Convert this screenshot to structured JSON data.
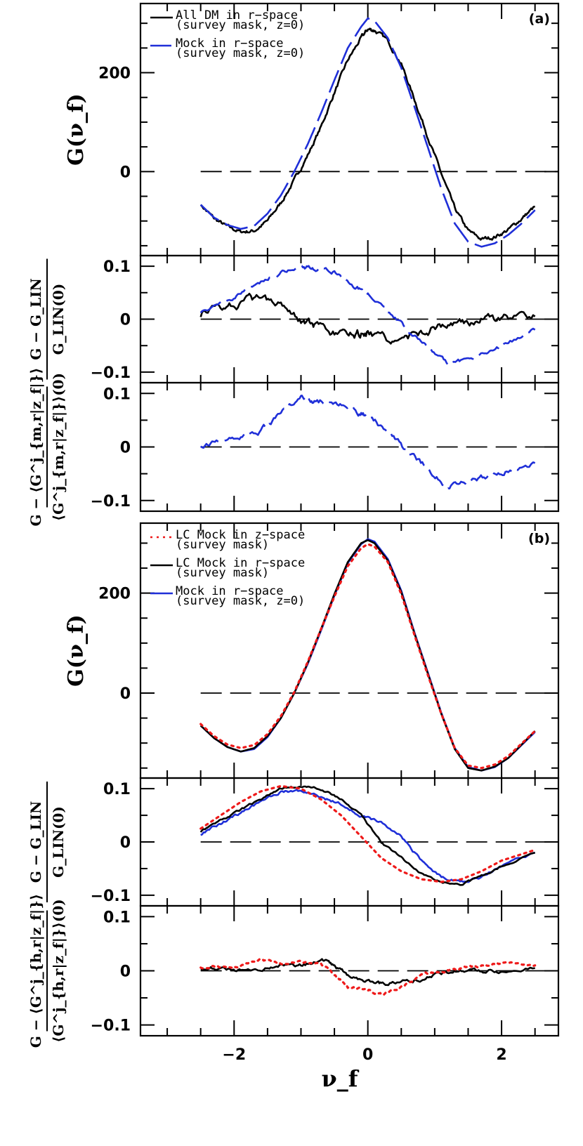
{
  "colors": {
    "black": "#000000",
    "blue": "#1f2fd8",
    "red": "#ee1a1a"
  },
  "chart_data": {
    "type": "line",
    "x_label": "ν_f",
    "x_ticks": [
      "−2",
      "0",
      "2"
    ],
    "panels": [
      {
        "id": "a-main",
        "panel_tag": "(a)",
        "ylabel": "G(ν_f)",
        "ylim": [
          -170,
          340
        ],
        "y_ticks": [
          {
            "v": 0,
            "t": "0"
          },
          {
            "v": 200,
            "t": "200"
          }
        ],
        "legend": [
          {
            "line1": "All DM in r−space",
            "line2": "(survey mask, z=0)",
            "color": "#000000",
            "dash": "solid"
          },
          {
            "line1": "Mock in r−space",
            "line2": "(survey mask, z=0)",
            "color": "#1f2fd8",
            "dash": "long"
          }
        ],
        "series": [
          {
            "color": "#000000",
            "dash": "solid",
            "noise": 0.006,
            "x": [
              -2.5,
              -2.3,
              -2.1,
              -1.9,
              -1.7,
              -1.5,
              -1.3,
              -1.1,
              -0.9,
              -0.7,
              -0.5,
              -0.3,
              -0.1,
              0,
              0.1,
              0.3,
              0.5,
              0.7,
              0.9,
              1.1,
              1.3,
              1.5,
              1.7,
              1.9,
              2.1,
              2.3,
              2.5
            ],
            "y": [
              -67,
              -95,
              -112,
              -122,
              -120,
              -100,
              -63,
              -18,
              33,
              90,
              160,
              225,
              270,
              288,
              286,
              265,
              218,
              145,
              70,
              -5,
              -75,
              -120,
              -137,
              -132,
              -118,
              -95,
              -71
            ]
          },
          {
            "color": "#1f2fd8",
            "dash": "long",
            "noise": 0,
            "x": [
              -2.5,
              -2.3,
              -2.1,
              -1.9,
              -1.7,
              -1.5,
              -1.3,
              -1.1,
              -0.9,
              -0.7,
              -0.5,
              -0.3,
              -0.1,
              0,
              0.1,
              0.3,
              0.5,
              0.7,
              0.9,
              1.1,
              1.3,
              1.5,
              1.7,
              1.9,
              2.1,
              2.3,
              2.5
            ],
            "y": [
              -67,
              -93,
              -108,
              -116,
              -110,
              -85,
              -48,
              0,
              55,
              118,
              185,
              250,
              293,
              310,
              305,
              270,
              210,
              130,
              48,
              -35,
              -105,
              -142,
              -152,
              -145,
              -128,
              -105,
              -78
            ]
          }
        ],
        "zero_line": "dashed"
      },
      {
        "id": "a-ratio1",
        "ylabel_num": "G − G_LIN",
        "ylabel_den": "G_LIN(0)",
        "ylim": [
          -0.12,
          0.12
        ],
        "y_ticks": [
          {
            "v": -0.1,
            "t": "−0.1"
          },
          {
            "v": 0,
            "t": "0"
          },
          {
            "v": 0.1,
            "t": "0.1"
          }
        ],
        "series": [
          {
            "color": "#000000",
            "dash": "solid",
            "noise": 0.012,
            "x": [
              -2.5,
              -2.2,
              -1.9,
              -1.6,
              -1.3,
              -1.0,
              -0.8,
              -0.5,
              -0.2,
              0,
              0.3,
              0.6,
              0.9,
              1.2,
              1.5,
              1.8,
              2.1,
              2.5
            ],
            "y": [
              0.01,
              0.025,
              0.03,
              0.04,
              0.035,
              0.0,
              -0.015,
              -0.03,
              -0.03,
              -0.025,
              -0.04,
              -0.035,
              -0.02,
              -0.01,
              -0.005,
              0.0,
              0.002,
              0.005
            ]
          },
          {
            "color": "#1f2fd8",
            "dash": "long",
            "noise": 0.006,
            "x": [
              -2.5,
              -2.2,
              -1.9,
              -1.6,
              -1.3,
              -1.0,
              -0.8,
              -0.5,
              -0.2,
              0,
              0.3,
              0.6,
              0.9,
              1.2,
              1.5,
              1.8,
              2.1,
              2.5
            ],
            "y": [
              0.015,
              0.03,
              0.05,
              0.07,
              0.09,
              0.1,
              0.095,
              0.09,
              0.06,
              0.05,
              0.015,
              -0.02,
              -0.055,
              -0.085,
              -0.075,
              -0.06,
              -0.045,
              -0.02
            ]
          }
        ],
        "zero_line": "dashed"
      },
      {
        "id": "a-ratio2",
        "ylabel_num": "G − ⟨G^j_{m,r|z_f|}⟩",
        "ylabel_den": "⟨G^j_{m,r|z_f|}⟩(0)",
        "ylim": [
          -0.12,
          0.12
        ],
        "y_ticks": [
          {
            "v": -0.1,
            "t": "−0.1"
          },
          {
            "v": 0,
            "t": "0"
          },
          {
            "v": 0.1,
            "t": "0.1"
          }
        ],
        "series": [
          {
            "color": "#1f2fd8",
            "dash": "long",
            "noise": 0.008,
            "x": [
              -2.5,
              -2.2,
              -1.9,
              -1.6,
              -1.3,
              -1.0,
              -0.8,
              -0.5,
              -0.2,
              0,
              0.3,
              0.6,
              0.9,
              1.2,
              1.5,
              1.8,
              2.1,
              2.5
            ],
            "y": [
              0.005,
              0.01,
              0.02,
              0.03,
              0.06,
              0.1,
              0.085,
              0.085,
              0.07,
              0.055,
              0.03,
              -0.01,
              -0.04,
              -0.075,
              -0.065,
              -0.055,
              -0.045,
              -0.03
            ]
          }
        ],
        "zero_line": "dashed"
      },
      {
        "id": "b-main",
        "panel_tag": "(b)",
        "ylabel": "G(ν_f)",
        "ylim": [
          -170,
          340
        ],
        "y_ticks": [
          {
            "v": 0,
            "t": "0"
          },
          {
            "v": 200,
            "t": "200"
          }
        ],
        "legend": [
          {
            "line1": "LC Mock in z−space",
            "line2": "(survey mask)",
            "color": "#ee1a1a",
            "dash": "dotted"
          },
          {
            "line1": "LC Mock in r−space",
            "line2": "(survey mask)",
            "color": "#000000",
            "dash": "solid"
          },
          {
            "line1": "Mock in r−space",
            "line2": "(survey mask, z=0)",
            "color": "#1f2fd8",
            "dash": "solid"
          }
        ],
        "series": [
          {
            "color": "#1f2fd8",
            "dash": "solid",
            "noise": 0,
            "x": [
              -2.5,
              -2.3,
              -2.1,
              -1.9,
              -1.7,
              -1.5,
              -1.3,
              -1.1,
              -0.9,
              -0.7,
              -0.5,
              -0.3,
              -0.1,
              0,
              0.1,
              0.3,
              0.5,
              0.7,
              0.9,
              1.1,
              1.3,
              1.5,
              1.7,
              1.9,
              2.1,
              2.5
            ],
            "y": [
              -65,
              -90,
              -108,
              -117,
              -112,
              -88,
              -50,
              0,
              58,
              125,
              195,
              260,
              298,
              308,
              303,
              268,
              205,
              120,
              40,
              -40,
              -110,
              -148,
              -155,
              -148,
              -130,
              -78
            ]
          },
          {
            "color": "#000000",
            "dash": "solid",
            "noise": 0,
            "x": [
              -2.5,
              -2.3,
              -2.1,
              -1.9,
              -1.7,
              -1.5,
              -1.3,
              -1.1,
              -0.9,
              -0.7,
              -0.5,
              -0.3,
              -0.1,
              0,
              0.1,
              0.3,
              0.5,
              0.7,
              0.9,
              1.1,
              1.3,
              1.5,
              1.7,
              1.9,
              2.1,
              2.5
            ],
            "y": [
              -65,
              -90,
              -108,
              -117,
              -110,
              -86,
              -50,
              0,
              60,
              128,
              198,
              262,
              300,
              306,
              300,
              265,
              202,
              118,
              38,
              -42,
              -112,
              -150,
              -155,
              -147,
              -130,
              -76
            ]
          },
          {
            "color": "#ee1a1a",
            "dash": "dotted",
            "noise": 0,
            "x": [
              -2.5,
              -2.3,
              -2.1,
              -1.9,
              -1.7,
              -1.5,
              -1.3,
              -1.1,
              -0.9,
              -0.7,
              -0.5,
              -0.3,
              -0.1,
              0,
              0.1,
              0.3,
              0.5,
              0.7,
              0.9,
              1.1,
              1.3,
              1.5,
              1.7,
              1.9,
              2.1,
              2.5
            ],
            "y": [
              -62,
              -86,
              -103,
              -110,
              -104,
              -82,
              -46,
              2,
              62,
              128,
              193,
              254,
              290,
              298,
              293,
              262,
              198,
              115,
              35,
              -42,
              -110,
              -145,
              -150,
              -143,
              -126,
              -76
            ]
          }
        ],
        "zero_line": "dashed"
      },
      {
        "id": "b-ratio1",
        "ylabel_num": "G − G_LIN",
        "ylabel_den": "G_LIN(0)",
        "ylim": [
          -0.12,
          0.12
        ],
        "y_ticks": [
          {
            "v": -0.1,
            "t": "−0.1"
          },
          {
            "v": 0,
            "t": "0"
          },
          {
            "v": 0.1,
            "t": "0.1"
          }
        ],
        "series": [
          {
            "color": "#1f2fd8",
            "dash": "solid",
            "noise": 0.004,
            "x": [
              -2.5,
              -2.2,
              -1.9,
              -1.6,
              -1.3,
              -1.0,
              -0.7,
              -0.4,
              -0.1,
              0.2,
              0.5,
              0.8,
              1.1,
              1.4,
              1.7,
              2.0,
              2.5
            ],
            "y": [
              0.015,
              0.035,
              0.055,
              0.075,
              0.095,
              0.095,
              0.085,
              0.07,
              0.05,
              0.035,
              0.01,
              -0.035,
              -0.065,
              -0.075,
              -0.065,
              -0.045,
              -0.02
            ]
          },
          {
            "color": "#000000",
            "dash": "solid",
            "noise": 0.003,
            "x": [
              -2.5,
              -2.2,
              -1.9,
              -1.6,
              -1.3,
              -1.0,
              -0.7,
              -0.4,
              -0.1,
              0.2,
              0.5,
              0.8,
              1.1,
              1.4,
              1.7,
              2.0,
              2.5
            ],
            "y": [
              0.02,
              0.04,
              0.06,
              0.08,
              0.1,
              0.105,
              0.1,
              0.08,
              0.05,
              0.0,
              -0.03,
              -0.06,
              -0.075,
              -0.08,
              -0.065,
              -0.045,
              -0.02
            ]
          },
          {
            "color": "#ee1a1a",
            "dash": "dotted",
            "noise": 0,
            "x": [
              -2.5,
              -2.2,
              -1.9,
              -1.6,
              -1.3,
              -1.0,
              -0.7,
              -0.4,
              -0.1,
              0.2,
              0.5,
              0.8,
              1.1,
              1.4,
              1.7,
              2.0,
              2.5
            ],
            "y": [
              0.025,
              0.05,
              0.075,
              0.095,
              0.105,
              0.1,
              0.08,
              0.05,
              0.01,
              -0.03,
              -0.055,
              -0.07,
              -0.075,
              -0.07,
              -0.055,
              -0.035,
              -0.015
            ]
          }
        ],
        "zero_line": "dashed"
      },
      {
        "id": "b-ratio2",
        "ylabel_num": "G − ⟨G^j_{h,r|z_f|}⟩",
        "ylabel_den": "⟨G^j_{h,r|z_f|}⟩(0)",
        "ylim": [
          -0.12,
          0.12
        ],
        "y_ticks": [
          {
            "v": -0.1,
            "t": "−0.1"
          },
          {
            "v": 0,
            "t": "0"
          },
          {
            "v": 0.1,
            "t": "0.1"
          }
        ],
        "series": [
          {
            "color": "#000000",
            "dash": "solid",
            "noise": 0.005,
            "x": [
              -2.5,
              -2.2,
              -1.9,
              -1.6,
              -1.3,
              -1.0,
              -0.7,
              -0.5,
              -0.3,
              0,
              0.2,
              0.5,
              0.8,
              1.1,
              1.4,
              1.7,
              2.0,
              2.5
            ],
            "y": [
              0.005,
              0.005,
              0.0,
              0.005,
              0.01,
              0.01,
              0.02,
              0.01,
              -0.01,
              -0.02,
              -0.025,
              -0.02,
              -0.015,
              -0.005,
              0.0,
              0.0,
              0.0,
              0.005
            ]
          },
          {
            "color": "#ee1a1a",
            "dash": "dotted",
            "noise": 0.004,
            "x": [
              -2.5,
              -2.2,
              -1.9,
              -1.6,
              -1.3,
              -1.0,
              -0.7,
              -0.5,
              -0.3,
              0,
              0.2,
              0.5,
              0.8,
              1.1,
              1.4,
              1.7,
              2.0,
              2.5
            ],
            "y": [
              0.008,
              0.008,
              0.01,
              0.02,
              0.015,
              0.015,
              0.01,
              -0.005,
              -0.03,
              -0.035,
              -0.045,
              -0.03,
              -0.01,
              0.0,
              0.005,
              0.01,
              0.015,
              0.01
            ]
          }
        ],
        "zero_line": "dashed"
      }
    ]
  }
}
